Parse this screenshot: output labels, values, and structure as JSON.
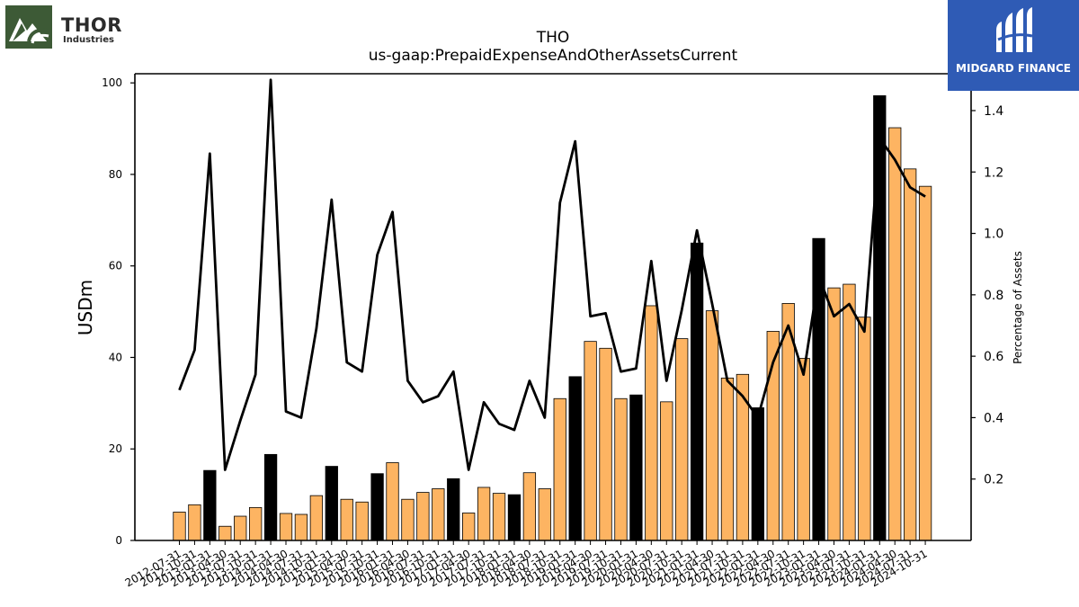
{
  "logos": {
    "company_name": "THOR",
    "company_sub": "Industries",
    "brand_name": "MIDGARD FINANCE"
  },
  "colors": {
    "bar_regular": "#FDB462",
    "bar_highlight": "#000000",
    "line": "#000000",
    "midgard_bg": "#2f5bb5",
    "thor_green": "#3d5a36"
  },
  "chart_data": {
    "type": "bar",
    "title": "THO",
    "subtitle": "us-gaap:PrepaidExpenseAndOtherAssetsCurrent",
    "ylabel": "USDm",
    "y2label": "Percentage of Assets",
    "ylim": [
      0,
      102
    ],
    "y2lim": [
      0,
      1.52
    ],
    "yticks": [
      0,
      20,
      40,
      60,
      80,
      100
    ],
    "y2ticks": [
      0.2,
      0.4,
      0.6,
      0.8,
      1.0,
      1.2,
      1.4
    ],
    "grid": false,
    "categories": [
      "2012-07-31",
      "2012-10-31",
      "2013-01-31",
      "2013-04-30",
      "2013-07-31",
      "2013-10-31",
      "2014-01-31",
      "2014-04-30",
      "2014-07-31",
      "2014-10-31",
      "2015-01-31",
      "2015-04-30",
      "2015-07-31",
      "2015-10-31",
      "2016-01-31",
      "2016-04-30",
      "2016-07-31",
      "2016-10-31",
      "2017-01-31",
      "2017-04-30",
      "2017-07-31",
      "2017-10-31",
      "2018-01-31",
      "2018-04-30",
      "2018-07-31",
      "2018-10-31",
      "2019-01-31",
      "2019-04-30",
      "2019-07-31",
      "2019-10-31",
      "2020-01-31",
      "2020-04-30",
      "2020-07-31",
      "2020-10-31",
      "2021-01-31",
      "2021-04-30",
      "2021-07-31",
      "2021-10-31",
      "2022-01-31",
      "2022-04-30",
      "2022-07-31",
      "2022-10-31",
      "2023-01-31",
      "2023-04-30",
      "2023-07-31",
      "2023-10-31",
      "2024-01-31",
      "2024-04-30",
      "2024-07-31",
      "2024-10-31"
    ],
    "series": [
      {
        "kind": "bar",
        "values": [
          6.2,
          7.8,
          15.3,
          3.1,
          5.3,
          7.2,
          18.8,
          5.9,
          5.7,
          9.8,
          16.2,
          9.0,
          8.4,
          14.6,
          17.0,
          9.0,
          10.5,
          11.3,
          13.5,
          6.0,
          11.6,
          10.3,
          10.0,
          14.8,
          11.3,
          31.0,
          35.8,
          43.5,
          42.0,
          31.0,
          31.8,
          51.3,
          30.3,
          44.1,
          65.0,
          50.2,
          35.5,
          36.3,
          29.0,
          45.7,
          51.8,
          39.8,
          66.0,
          55.2,
          56.0,
          48.8,
          97.2,
          90.2,
          81.2,
          77.4
        ],
        "highlight": [
          false,
          false,
          true,
          false,
          false,
          false,
          true,
          false,
          false,
          false,
          true,
          false,
          false,
          true,
          false,
          false,
          false,
          false,
          true,
          false,
          false,
          false,
          true,
          false,
          false,
          false,
          true,
          false,
          false,
          false,
          true,
          false,
          false,
          false,
          true,
          false,
          false,
          false,
          true,
          false,
          false,
          false,
          true,
          false,
          false,
          false,
          true,
          false,
          false,
          false
        ]
      },
      {
        "kind": "line",
        "axis": "right",
        "values": [
          0.49,
          0.62,
          1.26,
          0.23,
          0.39,
          0.54,
          1.5,
          0.42,
          0.4,
          0.69,
          1.11,
          0.58,
          0.55,
          0.93,
          1.07,
          0.52,
          0.45,
          0.47,
          0.55,
          0.23,
          0.45,
          0.38,
          0.36,
          0.52,
          0.4,
          1.1,
          1.3,
          0.73,
          0.74,
          0.55,
          0.56,
          0.91,
          0.52,
          0.75,
          1.01,
          0.77,
          0.52,
          0.47,
          0.4,
          0.58,
          0.7,
          0.54,
          0.86,
          0.73,
          0.77,
          0.68,
          1.31,
          1.24,
          1.15,
          1.12
        ]
      }
    ]
  }
}
